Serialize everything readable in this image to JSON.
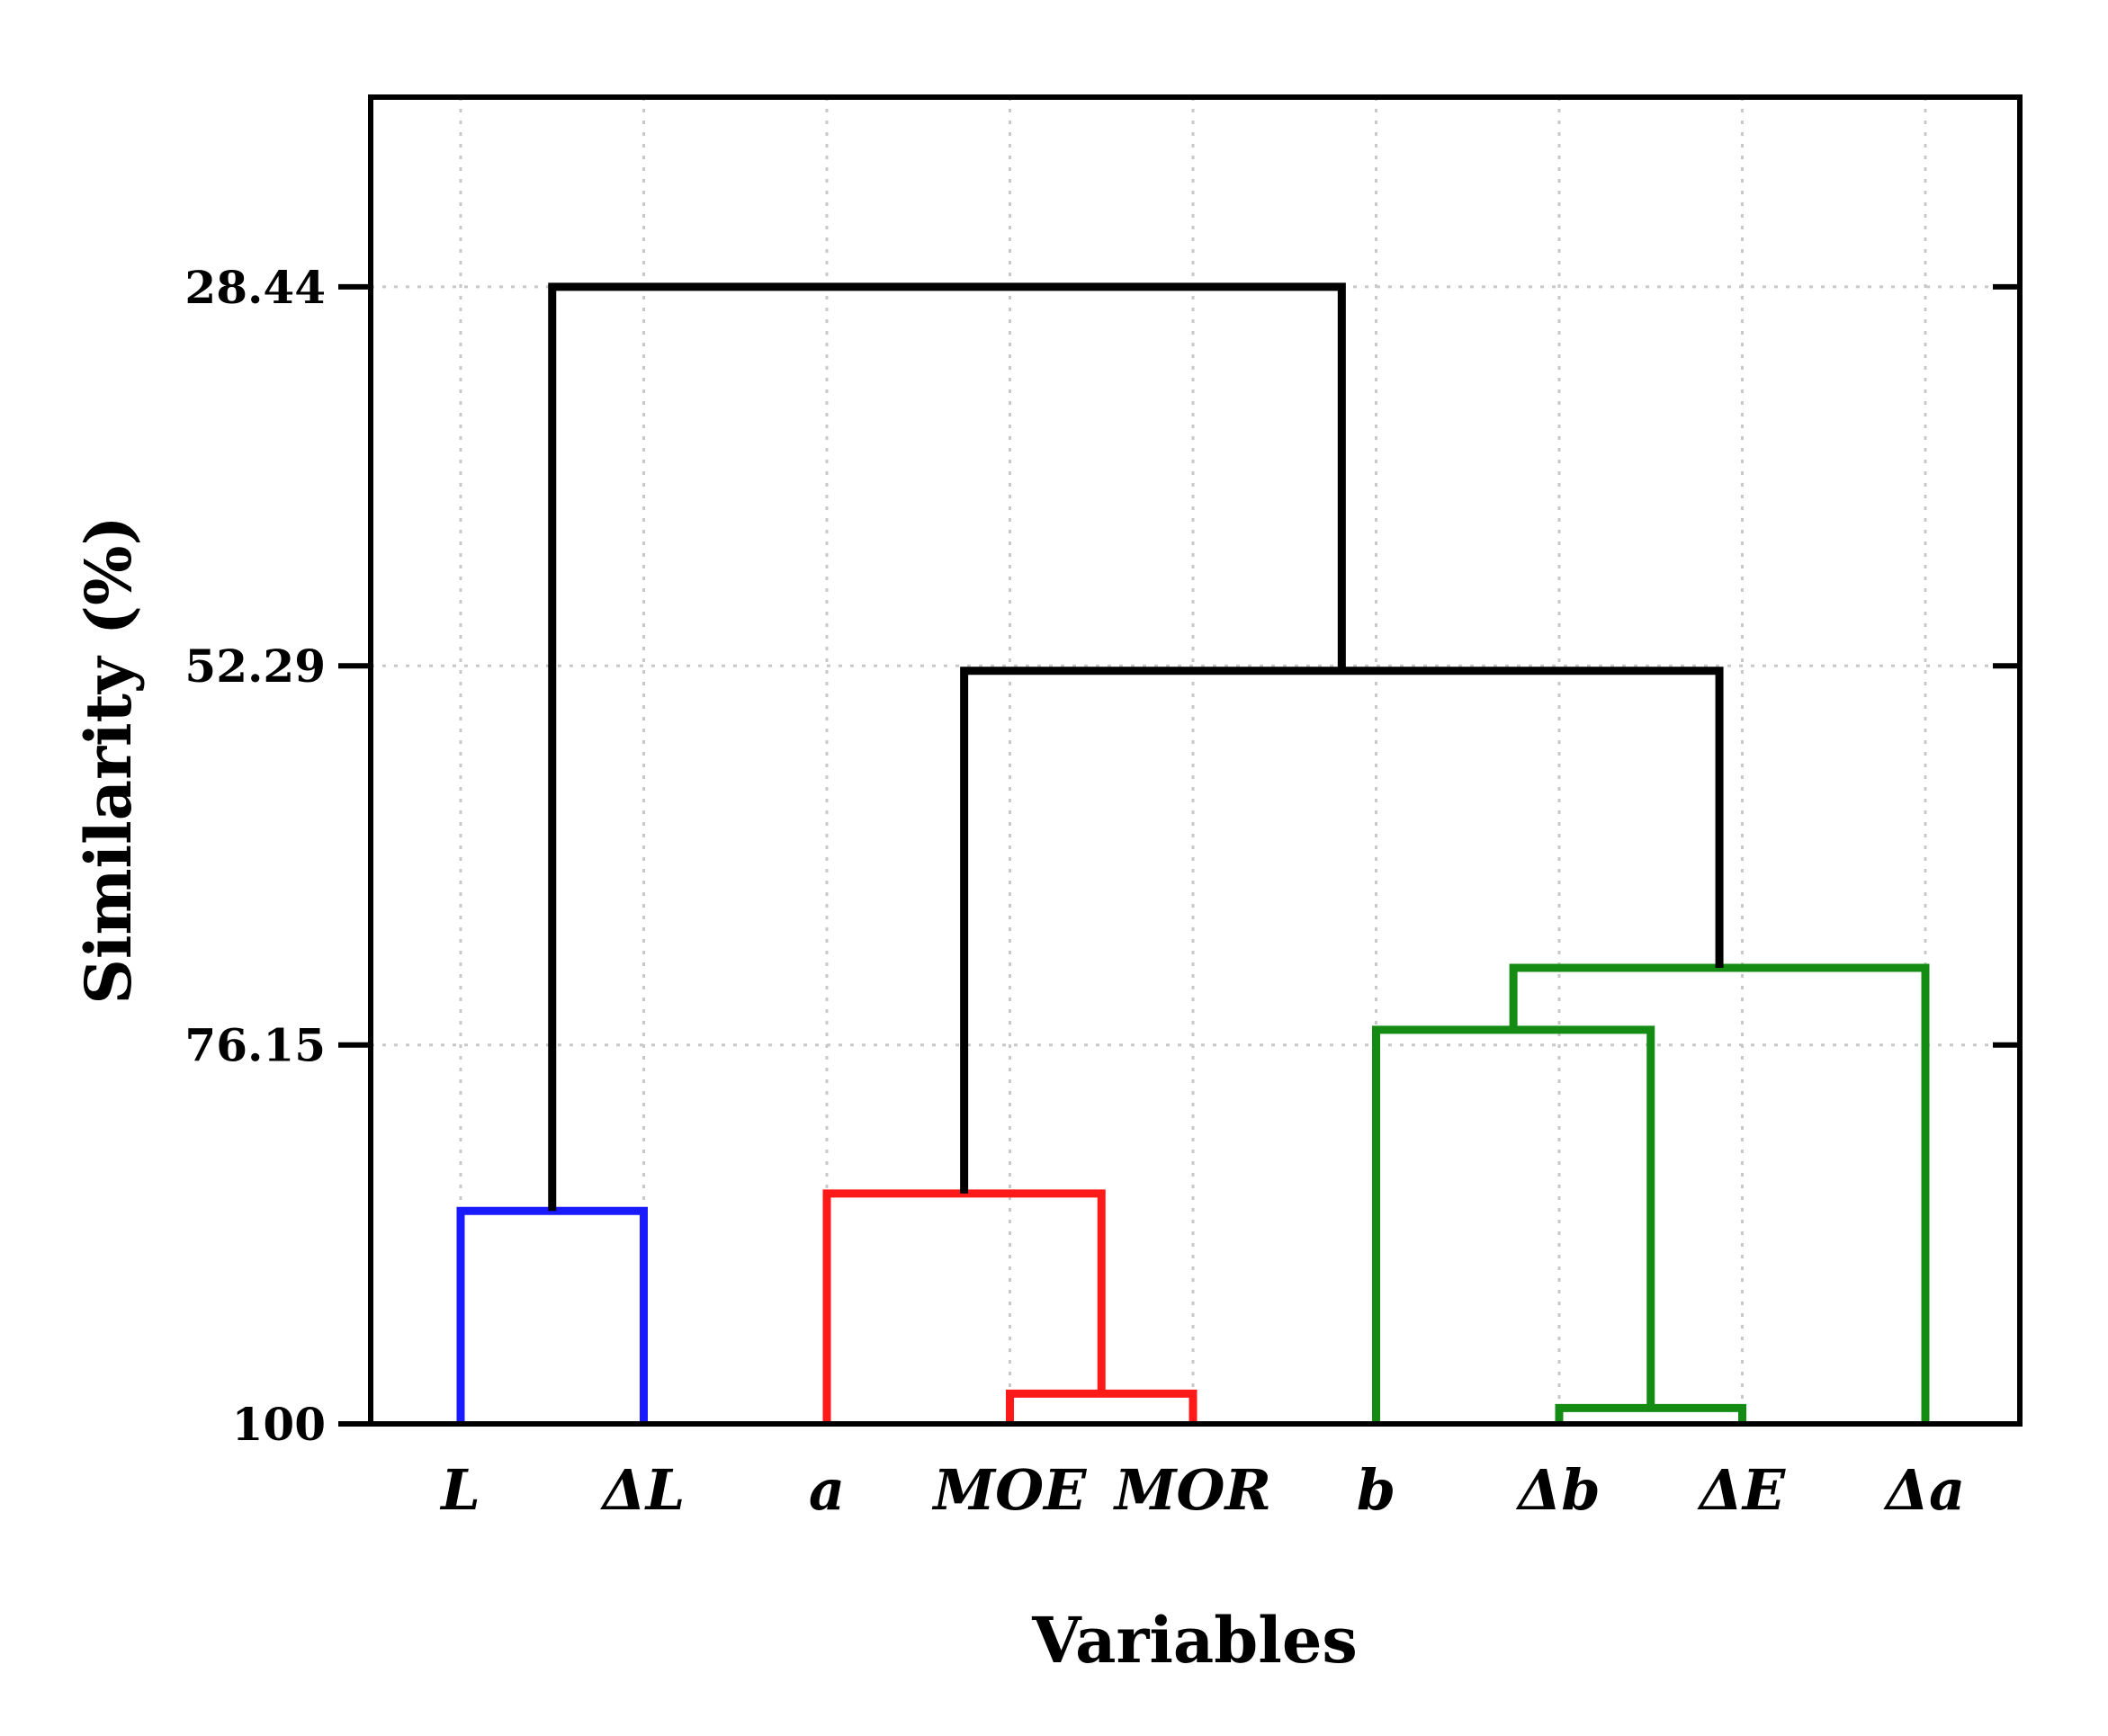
{
  "chart_data": {
    "type": "dendrogram",
    "xlabel": "Variables",
    "ylabel": "Similarity (%)",
    "categories": [
      "L",
      "ΔL",
      "a",
      "MOE",
      "MOR",
      "b",
      "Δb",
      "ΔE",
      "Δa"
    ],
    "yticks": [
      28.44,
      52.29,
      76.15,
      100
    ],
    "ytick_labels": [
      "28.44",
      "52.29",
      "76.15",
      "100"
    ],
    "ylim": [
      16.5,
      100
    ],
    "y_inverted": true,
    "grid": true,
    "colors": {
      "blue": "#1a1aff",
      "red": "#ff1a1a",
      "green": "#148c14",
      "black": "#000000"
    },
    "merges": [
      {
        "left": {
          "leaf": 3
        },
        "right": {
          "leaf": 4
        },
        "similarity": 98.1,
        "color": "red"
      },
      {
        "left": {
          "leaf": 0
        },
        "right": {
          "leaf": 1
        },
        "similarity": 86.6,
        "color": "blue"
      },
      {
        "left": {
          "leaf": 6
        },
        "right": {
          "leaf": 7
        },
        "similarity": 99.0,
        "color": "green"
      },
      {
        "left": {
          "leaf": 2
        },
        "right": {
          "merge": 0
        },
        "similarity": 85.5,
        "color": "red"
      },
      {
        "left": {
          "leaf": 5
        },
        "right": {
          "merge": 2
        },
        "similarity": 75.2,
        "color": "green"
      },
      {
        "left": {
          "merge": 4
        },
        "right": {
          "leaf": 8
        },
        "similarity": 71.3,
        "color": "green"
      },
      {
        "left": {
          "merge": 3
        },
        "right": {
          "merge": 5
        },
        "similarity": 52.6,
        "color": "black"
      },
      {
        "left": {
          "merge": 1
        },
        "right": {
          "merge": 6
        },
        "similarity": 28.44,
        "color": "black"
      }
    ]
  }
}
